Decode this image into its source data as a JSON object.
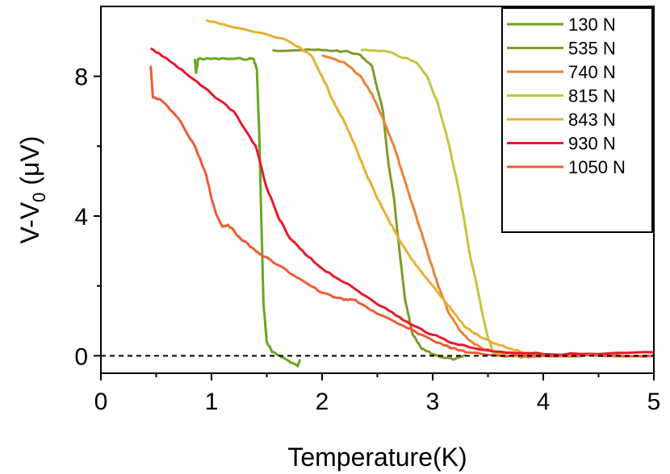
{
  "chart_data": {
    "type": "line",
    "title": "",
    "xlabel": "Temperature(K)",
    "ylabel_main": "V-V",
    "ylabel_sub": "0",
    "ylabel_unit": " (μV)",
    "xlim": [
      0,
      5
    ],
    "ylim": [
      -0.5,
      10
    ],
    "xticks": [
      0,
      1,
      2,
      3,
      4,
      5
    ],
    "yticks": [
      0,
      4,
      8
    ],
    "grid": false,
    "legend_position": "top-right",
    "reference_line": {
      "y": 0,
      "style": "dashed"
    },
    "series": [
      {
        "name": "130 N",
        "color": "#6aa61e",
        "points": [
          [
            0.85,
            8.5
          ],
          [
            0.86,
            8.1
          ],
          [
            0.88,
            8.5
          ],
          [
            1.0,
            8.5
          ],
          [
            1.2,
            8.5
          ],
          [
            1.38,
            8.5
          ],
          [
            1.41,
            8.2
          ],
          [
            1.43,
            6.5
          ],
          [
            1.45,
            4.0
          ],
          [
            1.47,
            1.5
          ],
          [
            1.5,
            0.4
          ],
          [
            1.55,
            0.1
          ],
          [
            1.62,
            0.0
          ],
          [
            1.7,
            -0.15
          ],
          [
            1.78,
            -0.3
          ],
          [
            1.8,
            -0.1
          ]
        ]
      },
      {
        "name": "535 N",
        "color": "#7f9a2a",
        "points": [
          [
            1.55,
            8.75
          ],
          [
            1.8,
            8.75
          ],
          [
            2.0,
            8.75
          ],
          [
            2.2,
            8.72
          ],
          [
            2.35,
            8.6
          ],
          [
            2.45,
            8.3
          ],
          [
            2.55,
            7.0
          ],
          [
            2.6,
            5.5
          ],
          [
            2.65,
            4.5
          ],
          [
            2.7,
            3.0
          ],
          [
            2.75,
            1.6
          ],
          [
            2.82,
            0.6
          ],
          [
            2.9,
            0.2
          ],
          [
            3.0,
            0.05
          ],
          [
            3.1,
            -0.05
          ],
          [
            3.2,
            -0.1
          ],
          [
            3.3,
            0.0
          ]
        ]
      },
      {
        "name": "740 N",
        "color": "#ea8234",
        "points": [
          [
            2.0,
            8.6
          ],
          [
            2.2,
            8.4
          ],
          [
            2.35,
            8.0
          ],
          [
            2.45,
            7.5
          ],
          [
            2.55,
            6.8
          ],
          [
            2.65,
            6.0
          ],
          [
            2.75,
            5.0
          ],
          [
            2.85,
            4.0
          ],
          [
            2.95,
            3.0
          ],
          [
            3.05,
            2.0
          ],
          [
            3.15,
            1.2
          ],
          [
            3.25,
            0.7
          ],
          [
            3.35,
            0.4
          ],
          [
            3.45,
            0.2
          ],
          [
            3.6,
            0.05
          ],
          [
            3.8,
            -0.05
          ],
          [
            4.0,
            0.0
          ]
        ]
      },
      {
        "name": "815 N",
        "color": "#c4c53a",
        "points": [
          [
            2.35,
            8.75
          ],
          [
            2.6,
            8.7
          ],
          [
            2.85,
            8.4
          ],
          [
            2.95,
            8.0
          ],
          [
            3.05,
            7.2
          ],
          [
            3.15,
            6.0
          ],
          [
            3.22,
            5.0
          ],
          [
            3.28,
            4.0
          ],
          [
            3.33,
            3.0
          ],
          [
            3.4,
            2.0
          ],
          [
            3.45,
            1.2
          ],
          [
            3.5,
            0.5
          ],
          [
            3.55,
            0.1
          ],
          [
            3.7,
            0.0
          ],
          [
            3.9,
            0.0
          ],
          [
            4.2,
            0.0
          ]
        ]
      },
      {
        "name": "843 N",
        "color": "#e7b032",
        "points": [
          [
            0.95,
            9.6
          ],
          [
            1.2,
            9.4
          ],
          [
            1.5,
            9.2
          ],
          [
            1.7,
            9.0
          ],
          [
            1.9,
            8.6
          ],
          [
            2.0,
            8.0
          ],
          [
            2.1,
            7.3
          ],
          [
            2.2,
            6.7
          ],
          [
            2.3,
            6.0
          ],
          [
            2.4,
            5.2
          ],
          [
            2.5,
            4.5
          ],
          [
            2.6,
            3.9
          ],
          [
            2.7,
            3.3
          ],
          [
            2.8,
            2.8
          ],
          [
            2.9,
            2.4
          ],
          [
            3.0,
            2.0
          ],
          [
            3.1,
            1.6
          ],
          [
            3.2,
            1.2
          ],
          [
            3.3,
            0.8
          ],
          [
            3.45,
            0.5
          ],
          [
            3.6,
            0.3
          ],
          [
            3.8,
            0.1
          ],
          [
            4.0,
            0.05
          ],
          [
            4.5,
            0.0
          ],
          [
            5.0,
            0.0
          ]
        ]
      },
      {
        "name": "930 N",
        "color": "#e8192c",
        "points": [
          [
            0.45,
            8.8
          ],
          [
            0.6,
            8.5
          ],
          [
            0.8,
            8.0
          ],
          [
            1.0,
            7.5
          ],
          [
            1.2,
            7.0
          ],
          [
            1.4,
            6.0
          ],
          [
            1.5,
            4.8
          ],
          [
            1.6,
            4.0
          ],
          [
            1.7,
            3.4
          ],
          [
            1.85,
            2.9
          ],
          [
            2.0,
            2.5
          ],
          [
            2.2,
            2.1
          ],
          [
            2.4,
            1.7
          ],
          [
            2.6,
            1.3
          ],
          [
            2.8,
            0.9
          ],
          [
            3.0,
            0.6
          ],
          [
            3.2,
            0.35
          ],
          [
            3.4,
            0.2
          ],
          [
            3.6,
            0.12
          ],
          [
            4.0,
            0.05
          ],
          [
            4.5,
            0.05
          ],
          [
            5.0,
            0.1
          ]
        ]
      },
      {
        "name": "1050 N",
        "color": "#f05a32",
        "points": [
          [
            0.45,
            8.3
          ],
          [
            0.47,
            7.4
          ],
          [
            0.55,
            7.3
          ],
          [
            0.7,
            6.8
          ],
          [
            0.85,
            6.0
          ],
          [
            0.95,
            5.2
          ],
          [
            1.0,
            4.5
          ],
          [
            1.05,
            4.0
          ],
          [
            1.1,
            3.7
          ],
          [
            1.15,
            3.75
          ],
          [
            1.25,
            3.4
          ],
          [
            1.4,
            3.0
          ],
          [
            1.6,
            2.6
          ],
          [
            1.8,
            2.2
          ],
          [
            2.0,
            1.8
          ],
          [
            2.2,
            1.6
          ],
          [
            2.3,
            1.6
          ],
          [
            2.5,
            1.2
          ],
          [
            2.7,
            0.9
          ],
          [
            2.9,
            0.6
          ],
          [
            3.1,
            0.3
          ],
          [
            3.3,
            0.1
          ],
          [
            3.6,
            0.0
          ],
          [
            4.0,
            0.0
          ],
          [
            4.5,
            0.0
          ],
          [
            5.0,
            0.0
          ]
        ]
      }
    ]
  }
}
